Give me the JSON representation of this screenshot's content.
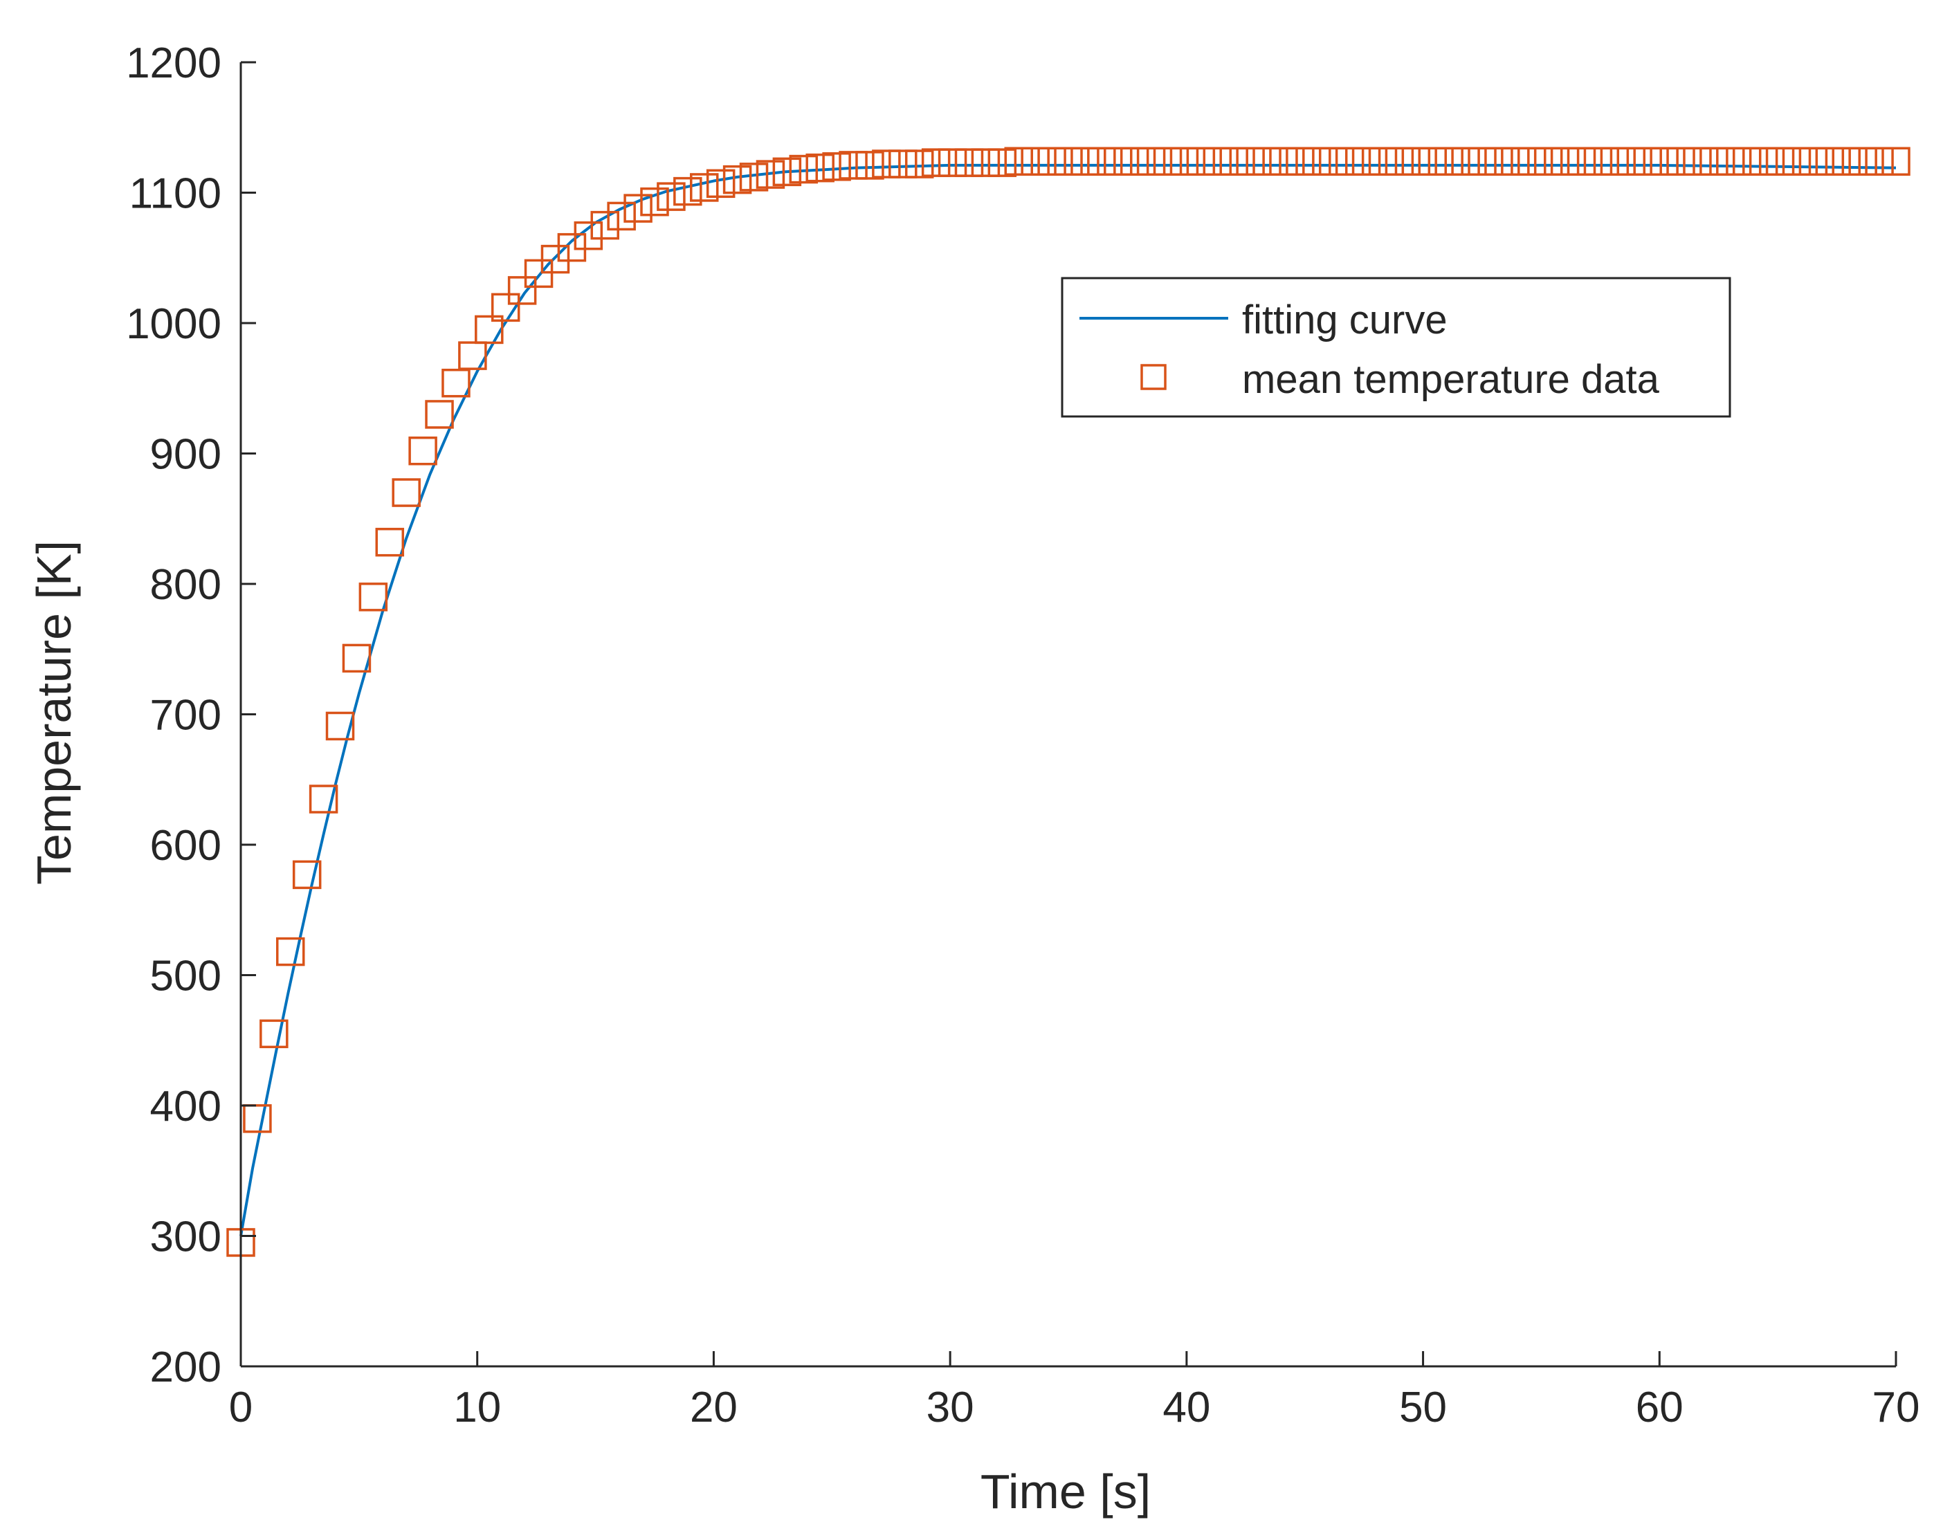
{
  "colors": {
    "fit_line": "#0072BD",
    "markers": "#D95319",
    "axis": "#262626",
    "background": "#ffffff"
  },
  "chart_data": {
    "type": "scatter",
    "xlabel": "Time [s]",
    "ylabel": "Temperature [K]",
    "xlim": [
      0,
      70
    ],
    "ylim": [
      200,
      1200
    ],
    "xticks": [
      0,
      10,
      20,
      30,
      40,
      50,
      60,
      70
    ],
    "yticks": [
      200,
      300,
      400,
      500,
      600,
      700,
      800,
      900,
      1000,
      1100,
      1200
    ],
    "grid": false,
    "legend_position": "upper-right",
    "legend": {
      "fit": "fitting curve",
      "data": "mean temperature data"
    },
    "series": [
      {
        "name": "fitting curve",
        "kind": "line",
        "x": [
          0,
          0.5,
          1,
          1.5,
          2,
          2.5,
          3,
          3.5,
          4,
          4.5,
          5,
          6,
          7,
          8,
          9,
          10,
          11,
          12,
          13,
          14,
          15,
          16,
          17,
          18,
          19,
          20,
          21,
          22,
          23,
          24,
          25,
          26,
          28,
          30,
          32,
          35,
          40,
          45,
          50,
          55,
          60,
          65,
          70
        ],
        "y": [
          300,
          352,
          397,
          442,
          486,
          528,
          569,
          608,
          646,
          682,
          716,
          779,
          835,
          884,
          926,
          963,
          995,
          1023,
          1045,
          1063,
          1077,
          1087,
          1095,
          1101,
          1105,
          1109,
          1112,
          1114,
          1116,
          1117,
          1118,
          1119,
          1120,
          1121,
          1121,
          1121,
          1121,
          1121,
          1121,
          1121,
          1121,
          1120,
          1119
        ]
      },
      {
        "name": "mean temperature data",
        "kind": "markers",
        "marker": "square",
        "x": [
          0,
          0.7,
          1.4,
          2.1,
          2.8,
          3.5,
          4.2,
          4.9,
          5.6,
          6.3,
          7.0,
          7.7,
          8.4,
          9.1,
          9.8,
          10.5,
          11.2,
          11.9,
          12.6,
          13.3,
          14.0,
          14.7,
          15.4,
          16.1,
          16.8,
          17.5,
          18.2,
          18.9,
          19.6,
          20.3,
          21.0,
          21.7,
          22.4,
          23.1,
          23.8,
          24.5,
          25.2,
          25.9,
          26.6,
          27.3,
          28.0,
          28.7,
          29.4,
          30.1,
          30.8,
          31.5,
          32.2,
          32.9,
          33.6,
          34.3,
          35.0,
          35.7,
          36.4,
          37.1,
          37.8,
          38.5,
          39.2,
          39.9,
          40.6,
          41.3,
          42.0,
          42.7,
          43.4,
          44.1,
          44.8,
          45.5,
          46.2,
          46.9,
          47.6,
          48.3,
          49.0,
          49.7,
          50.4,
          51.1,
          51.8,
          52.5,
          53.2,
          53.9,
          54.6,
          55.3,
          56.0,
          56.7,
          57.4,
          58.1,
          58.8,
          59.5,
          60.2,
          60.9,
          61.6,
          62.3,
          63.0,
          63.7,
          64.4,
          65.1,
          65.8,
          66.5,
          67.2,
          67.9,
          68.6,
          69.3,
          70.0
        ],
        "y": [
          295,
          390,
          455,
          518,
          577,
          635,
          691,
          743,
          790,
          832,
          870,
          902,
          930,
          954,
          975,
          995,
          1012,
          1025,
          1038,
          1049,
          1058,
          1067,
          1075,
          1082,
          1088,
          1093,
          1097,
          1101,
          1104,
          1107,
          1110,
          1112,
          1114,
          1116,
          1118,
          1119,
          1120,
          1121,
          1121,
          1122,
          1122,
          1122,
          1123,
          1123,
          1123,
          1123,
          1123,
          1124,
          1124,
          1124,
          1124,
          1124,
          1124,
          1124,
          1124,
          1124,
          1124,
          1124,
          1124,
          1124,
          1124,
          1124,
          1124,
          1124,
          1124,
          1124,
          1124,
          1124,
          1124,
          1124,
          1124,
          1124,
          1124,
          1124,
          1124,
          1124,
          1124,
          1124,
          1124,
          1124,
          1124,
          1124,
          1124,
          1124,
          1124,
          1124,
          1124,
          1124,
          1124,
          1124,
          1124,
          1124,
          1124,
          1124,
          1124,
          1124,
          1124,
          1124,
          1124,
          1124,
          1124
        ]
      }
    ]
  }
}
